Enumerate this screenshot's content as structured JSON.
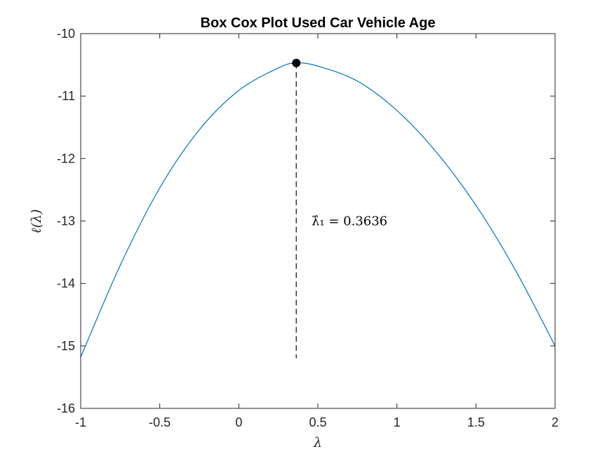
{
  "chart_data": {
    "type": "line",
    "title": "Box Cox Plot Used Car Vehicle Age",
    "xlabel": "λ",
    "ylabel": "ℓ(λ)",
    "xlim": [
      -1,
      2
    ],
    "ylim": [
      -16,
      -10
    ],
    "xticks": [
      -1,
      -0.5,
      0,
      0.5,
      1,
      1.5,
      2
    ],
    "xtick_labels": [
      "-1",
      "-0.5",
      "0",
      "0.5",
      "1",
      "1.5",
      "2"
    ],
    "yticks": [
      -16,
      -15,
      -14,
      -13,
      -12,
      -11,
      -10
    ],
    "ytick_labels": [
      "-16",
      "-15",
      "-14",
      "-13",
      "-12",
      "-11",
      "-10"
    ],
    "grid": false,
    "series": [
      {
        "x": [
          -1,
          -0.75,
          -0.5,
          -0.25,
          0,
          0.25,
          0.3636,
          0.5,
          0.75,
          1,
          1.25,
          1.5,
          1.75,
          2
        ],
        "y": [
          -15.18,
          -13.71,
          -12.47,
          -11.54,
          -10.91,
          -10.55,
          -10.47,
          -10.52,
          -10.76,
          -11.23,
          -11.9,
          -12.75,
          -13.79,
          -15.0
        ],
        "color": "#0072BD"
      }
    ],
    "optimum": {
      "x": 0.3636,
      "y": -10.47,
      "line_to_y": -15.2,
      "annotation": "λ̂₁ = 0.3636",
      "annotation_x": 0.46,
      "annotation_y": -13.0,
      "marker_color": "#000000"
    }
  }
}
